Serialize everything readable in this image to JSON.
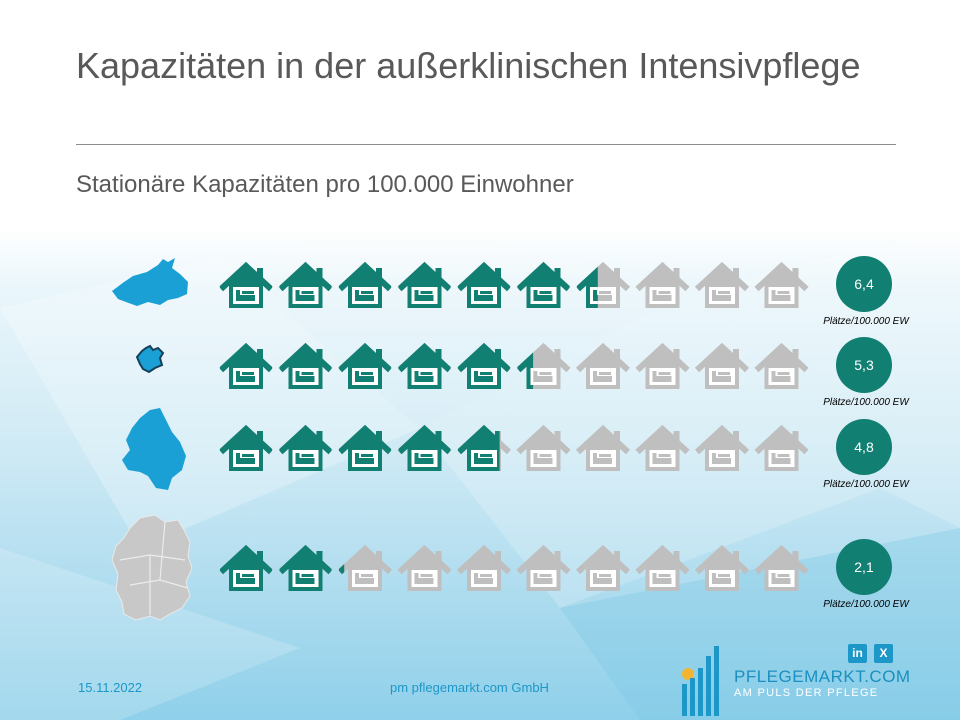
{
  "header": {
    "title": "Kapazitäten in der außerklinischen Intensivpflege",
    "subtitle": "Stationäre Kapazitäten pro 100.000 Einwohner"
  },
  "chart_data": {
    "type": "pictograph",
    "title": "Kapazitäten in der außerklinischen Intensivpflege",
    "subtitle": "Stationäre Kapazitäten pro 100.000 Einwohner",
    "icon": "house-bed-icon",
    "icons_per_row": 10,
    "unit_label": "Plätze/100.000 EW",
    "rows": [
      {
        "region_icon": "mecklenburg-vorpommern-map-icon",
        "value": 6.4,
        "label": "6,4"
      },
      {
        "region_icon": "berlin-map-icon",
        "value": 5.3,
        "label": "5,3"
      },
      {
        "region_icon": "sachsen-anhalt-map-icon",
        "value": 4.8,
        "label": "4,8"
      },
      {
        "region_icon": "germany-map-icon",
        "value": 2.1,
        "label": "2,1"
      }
    ],
    "colors": {
      "filled": "#127f73",
      "empty": "#bfbfbf",
      "map": "#1aa0d4",
      "map_germany": "#c8c8c8",
      "badge": "#127f73"
    }
  },
  "footer": {
    "date": "15.11.2022",
    "organization": "pm pflegemarkt.com GmbH",
    "logo_main": "PFLEGEMARKT.COM",
    "logo_sub": "AM PULS DER PFLEGE",
    "social_linkedin": "in",
    "social_xing": "X"
  }
}
